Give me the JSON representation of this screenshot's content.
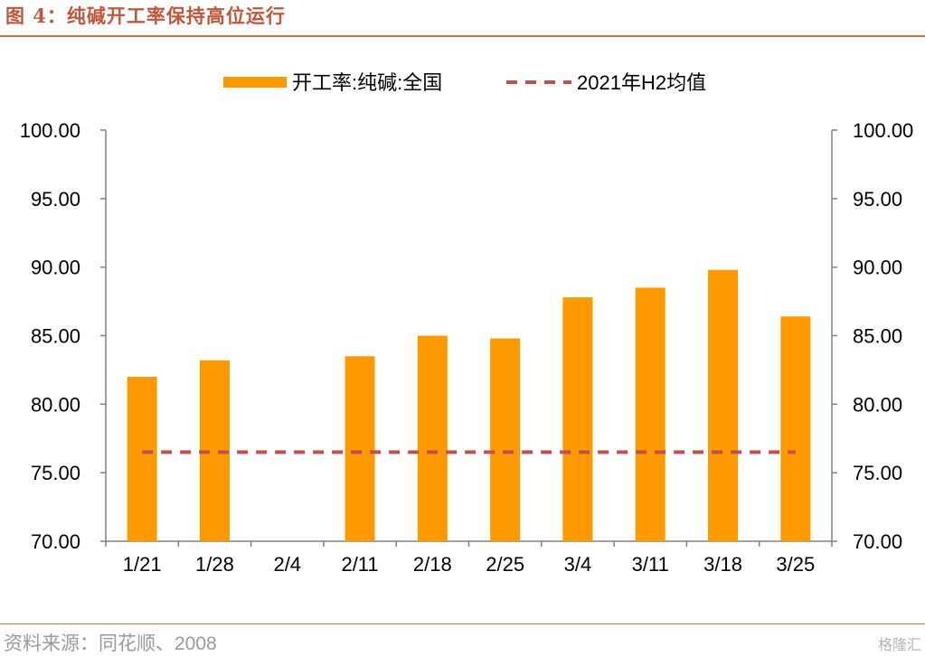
{
  "header": {
    "title": "图 4：纯碱开工率保持高位运行"
  },
  "footer": {
    "source": "资料来源：同花顺、2008",
    "watermark": "格隆汇"
  },
  "chart_data": {
    "type": "bar",
    "categories": [
      "1/21",
      "1/28",
      "2/4",
      "2/11",
      "2/18",
      "2/25",
      "3/4",
      "3/11",
      "3/18",
      "3/25"
    ],
    "series": [
      {
        "name": "开工率:纯碱:全国",
        "kind": "bar",
        "color": "#ff9900",
        "values": [
          82.0,
          83.2,
          null,
          83.5,
          85.0,
          84.8,
          87.8,
          88.5,
          89.8,
          86.4
        ]
      },
      {
        "name": "2021年H2均值",
        "kind": "dashed-line",
        "color": "#c0504d",
        "values": [
          76.5,
          76.5,
          76.5,
          76.5,
          76.5,
          76.5,
          76.5,
          76.5,
          76.5,
          76.5
        ]
      }
    ],
    "ylim": [
      70,
      100
    ],
    "yticks": [
      "70.00",
      "75.00",
      "80.00",
      "85.00",
      "90.00",
      "95.00",
      "100.00"
    ],
    "y2ticks": [
      "70.00",
      "75.00",
      "80.00",
      "85.00",
      "90.00",
      "95.00",
      "100.00"
    ],
    "legend_position": "top-center",
    "grid": false
  }
}
